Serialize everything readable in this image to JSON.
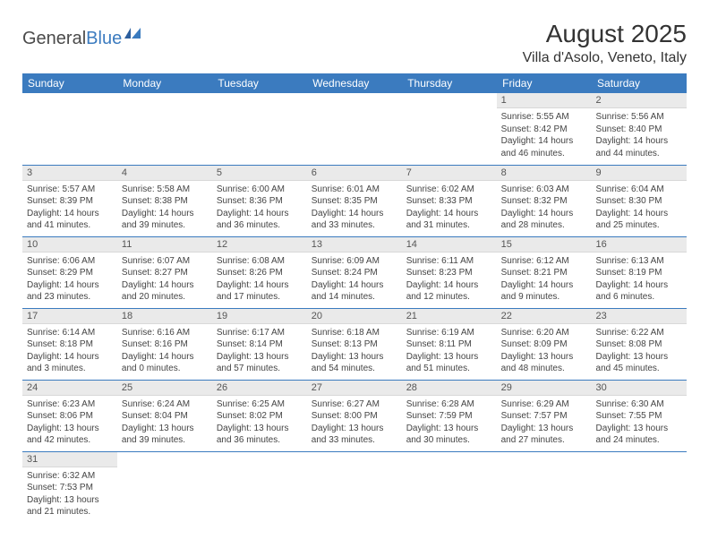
{
  "logo": {
    "text1": "General",
    "text2": "Blue"
  },
  "title": "August 2025",
  "location": "Villa d'Asolo, Veneto, Italy",
  "colors": {
    "header_bg": "#3b7bbf",
    "header_fg": "#ffffff",
    "daynum_bg": "#eaeaea",
    "row_divider": "#3b7bbf",
    "text": "#444444"
  },
  "weekdays": [
    "Sunday",
    "Monday",
    "Tuesday",
    "Wednesday",
    "Thursday",
    "Friday",
    "Saturday"
  ],
  "weeks": [
    [
      null,
      null,
      null,
      null,
      null,
      {
        "n": "1",
        "sr": "5:55 AM",
        "ss": "8:42 PM",
        "dl": "14 hours and 46 minutes."
      },
      {
        "n": "2",
        "sr": "5:56 AM",
        "ss": "8:40 PM",
        "dl": "14 hours and 44 minutes."
      }
    ],
    [
      {
        "n": "3",
        "sr": "5:57 AM",
        "ss": "8:39 PM",
        "dl": "14 hours and 41 minutes."
      },
      {
        "n": "4",
        "sr": "5:58 AM",
        "ss": "8:38 PM",
        "dl": "14 hours and 39 minutes."
      },
      {
        "n": "5",
        "sr": "6:00 AM",
        "ss": "8:36 PM",
        "dl": "14 hours and 36 minutes."
      },
      {
        "n": "6",
        "sr": "6:01 AM",
        "ss": "8:35 PM",
        "dl": "14 hours and 33 minutes."
      },
      {
        "n": "7",
        "sr": "6:02 AM",
        "ss": "8:33 PM",
        "dl": "14 hours and 31 minutes."
      },
      {
        "n": "8",
        "sr": "6:03 AM",
        "ss": "8:32 PM",
        "dl": "14 hours and 28 minutes."
      },
      {
        "n": "9",
        "sr": "6:04 AM",
        "ss": "8:30 PM",
        "dl": "14 hours and 25 minutes."
      }
    ],
    [
      {
        "n": "10",
        "sr": "6:06 AM",
        "ss": "8:29 PM",
        "dl": "14 hours and 23 minutes."
      },
      {
        "n": "11",
        "sr": "6:07 AM",
        "ss": "8:27 PM",
        "dl": "14 hours and 20 minutes."
      },
      {
        "n": "12",
        "sr": "6:08 AM",
        "ss": "8:26 PM",
        "dl": "14 hours and 17 minutes."
      },
      {
        "n": "13",
        "sr": "6:09 AM",
        "ss": "8:24 PM",
        "dl": "14 hours and 14 minutes."
      },
      {
        "n": "14",
        "sr": "6:11 AM",
        "ss": "8:23 PM",
        "dl": "14 hours and 12 minutes."
      },
      {
        "n": "15",
        "sr": "6:12 AM",
        "ss": "8:21 PM",
        "dl": "14 hours and 9 minutes."
      },
      {
        "n": "16",
        "sr": "6:13 AM",
        "ss": "8:19 PM",
        "dl": "14 hours and 6 minutes."
      }
    ],
    [
      {
        "n": "17",
        "sr": "6:14 AM",
        "ss": "8:18 PM",
        "dl": "14 hours and 3 minutes."
      },
      {
        "n": "18",
        "sr": "6:16 AM",
        "ss": "8:16 PM",
        "dl": "14 hours and 0 minutes."
      },
      {
        "n": "19",
        "sr": "6:17 AM",
        "ss": "8:14 PM",
        "dl": "13 hours and 57 minutes."
      },
      {
        "n": "20",
        "sr": "6:18 AM",
        "ss": "8:13 PM",
        "dl": "13 hours and 54 minutes."
      },
      {
        "n": "21",
        "sr": "6:19 AM",
        "ss": "8:11 PM",
        "dl": "13 hours and 51 minutes."
      },
      {
        "n": "22",
        "sr": "6:20 AM",
        "ss": "8:09 PM",
        "dl": "13 hours and 48 minutes."
      },
      {
        "n": "23",
        "sr": "6:22 AM",
        "ss": "8:08 PM",
        "dl": "13 hours and 45 minutes."
      }
    ],
    [
      {
        "n": "24",
        "sr": "6:23 AM",
        "ss": "8:06 PM",
        "dl": "13 hours and 42 minutes."
      },
      {
        "n": "25",
        "sr": "6:24 AM",
        "ss": "8:04 PM",
        "dl": "13 hours and 39 minutes."
      },
      {
        "n": "26",
        "sr": "6:25 AM",
        "ss": "8:02 PM",
        "dl": "13 hours and 36 minutes."
      },
      {
        "n": "27",
        "sr": "6:27 AM",
        "ss": "8:00 PM",
        "dl": "13 hours and 33 minutes."
      },
      {
        "n": "28",
        "sr": "6:28 AM",
        "ss": "7:59 PM",
        "dl": "13 hours and 30 minutes."
      },
      {
        "n": "29",
        "sr": "6:29 AM",
        "ss": "7:57 PM",
        "dl": "13 hours and 27 minutes."
      },
      {
        "n": "30",
        "sr": "6:30 AM",
        "ss": "7:55 PM",
        "dl": "13 hours and 24 minutes."
      }
    ],
    [
      {
        "n": "31",
        "sr": "6:32 AM",
        "ss": "7:53 PM",
        "dl": "13 hours and 21 minutes."
      },
      null,
      null,
      null,
      null,
      null,
      null
    ]
  ],
  "labels": {
    "sunrise": "Sunrise:",
    "sunset": "Sunset:",
    "daylight": "Daylight:"
  }
}
